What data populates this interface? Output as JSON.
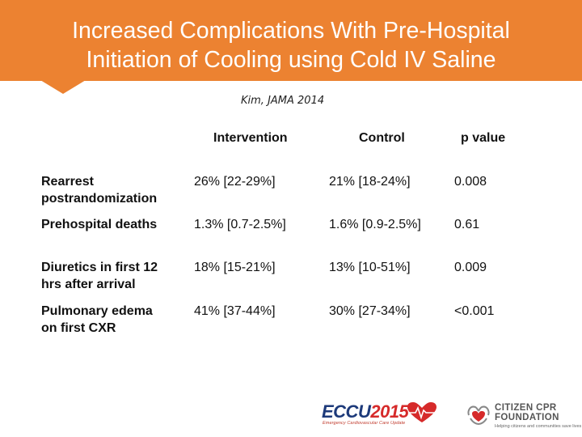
{
  "slide": {
    "title_line1": "Increased Complications With Pre-Hospital",
    "title_line2": "Initiation of Cooling using Cold IV Saline",
    "citation": "Kim, JAMA 2014"
  },
  "table": {
    "headers": [
      "Intervention",
      "Control",
      "p value"
    ],
    "rows": [
      {
        "label_line1": "Rearrest",
        "label_line2": "postrandomization",
        "intervention": "26% [22-29%]",
        "control": "21% [18-24%]",
        "p": "0.008"
      },
      {
        "label_line1": "Prehospital deaths",
        "label_line2": "",
        "intervention": "1.3% [0.7-2.5%]",
        "control": "1.6% [0.9-2.5%]",
        "p": "0.61"
      },
      {
        "label_line1": "Diuretics in first 12",
        "label_line2": "hrs after arrival",
        "intervention": "18% [15-21%]",
        "control": "13% [10-51%]",
        "p": "0.009"
      },
      {
        "label_line1": "Pulmonary edema",
        "label_line2": "on first CXR",
        "intervention": "41% [37-44%]",
        "control": "30% [27-34%]",
        "p": "<0.001"
      }
    ]
  },
  "footer": {
    "eccu_brand": "ECCU",
    "eccu_year": "2015",
    "eccu_tagline": "Emergency Cardiovascular Care Update",
    "ccpr_line1": "CITIZEN CPR",
    "ccpr_line2": "FOUNDATION",
    "ccpr_tagline": "Helping citizens and communities save lives"
  },
  "colors": {
    "header": "#ec8231",
    "eccu_blue": "#1d3a7a",
    "eccu_red": "#d62a2a"
  },
  "icons": [
    "eccu-heart-icon",
    "ccpr-heart-hands-icon"
  ]
}
